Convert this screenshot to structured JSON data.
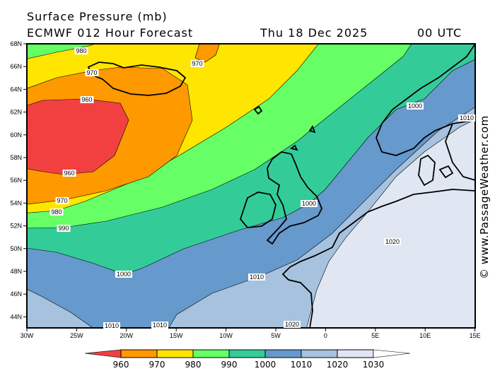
{
  "header": {
    "title": "Surface Pressure (mb)",
    "model": "ECMWF 012 Hour Forecast",
    "date": "Thu 18 Dec 2025",
    "time": "00 UTC"
  },
  "watermark": "© www.PassageWeather.com",
  "axes": {
    "lat_ticks": [
      "68N",
      "66N",
      "64N",
      "62N",
      "60N",
      "58N",
      "56N",
      "54N",
      "52N",
      "50N",
      "48N",
      "46N",
      "44N"
    ],
    "lon_ticks": [
      "30W",
      "25W",
      "20W",
      "15W",
      "10W",
      "5W",
      "0",
      "5E",
      "10E",
      "15E"
    ]
  },
  "contour_labels": [
    "980",
    "970",
    "970",
    "960",
    "960",
    "970",
    "980",
    "990",
    "1000",
    "1000",
    "1000",
    "1010",
    "1010",
    "1020",
    "1010",
    "1010",
    "1020"
  ],
  "legend": {
    "labels": [
      "960",
      "970",
      "980",
      "990",
      "1000",
      "1010",
      "1020",
      "1030"
    ],
    "colors": [
      "#f24040",
      "#ff9900",
      "#ffe600",
      "#66ff66",
      "#33cc99",
      "#6699cc",
      "#a6c2de",
      "#e0e7f3"
    ],
    "above_color": "#ffffff"
  }
}
